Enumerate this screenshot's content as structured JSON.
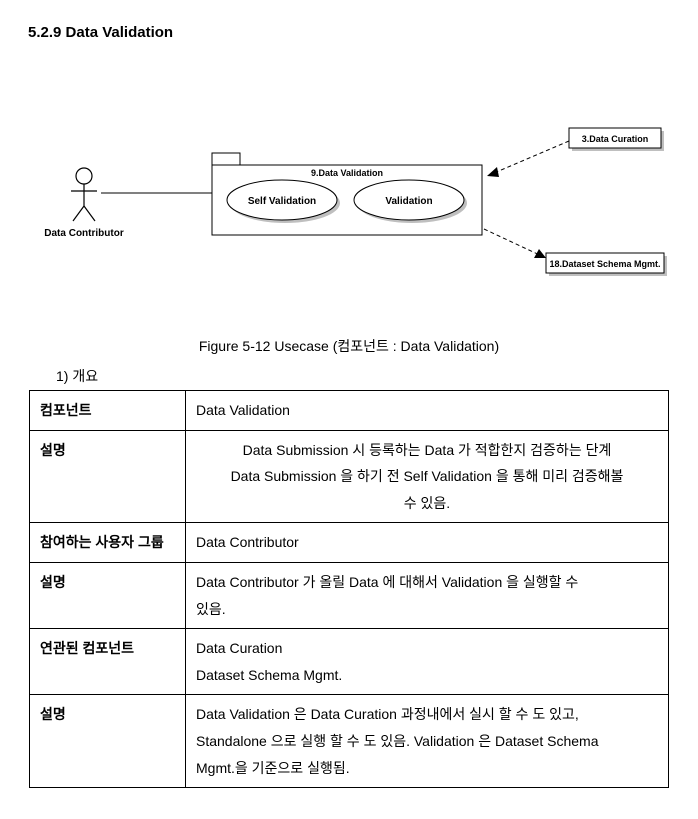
{
  "heading": "5.2.9  Data Validation",
  "diagram": {
    "actor_label": "Data Contributor",
    "package_label": "9.Data Validation",
    "usecase1": "Self Validation",
    "usecase2": "Validation",
    "ext_box_top": "3.Data Curation",
    "ext_box_bottom": "18.Dataset Schema Mgmt.",
    "colors": {
      "line": "#000000",
      "box_border": "#000000",
      "box_fill": "#ffffff",
      "shadow": "#bfbfbf"
    }
  },
  "figure_caption": "Figure 5-12 Usecase (컴포넌트 : Data Validation)",
  "list_item": "1)  개요",
  "table": {
    "rows": [
      {
        "k": "컴포넌트",
        "v": "Data Validation"
      },
      {
        "k": "설명",
        "v_lines": [
          "Data Submission 시 등록하는 Data 가 적합한지 검증하는 단계",
          "Data Submission 을 하기 전 Self Validation 을 통해 미리 검증해볼",
          "수 있음."
        ],
        "center": true
      },
      {
        "k": "참여하는 사용자 그룹",
        "v": "Data  Contributor"
      },
      {
        "k": "설명",
        "v_lines": [
          "Data Contributor 가 올릴 Data 에 대해서 Validation 을 실행할 수",
          "있음."
        ]
      },
      {
        "k": "연관된 컴포넌트",
        "v_lines": [
          "Data Curation",
          "Dataset Schema Mgmt."
        ]
      },
      {
        "k": "설명",
        "v_lines": [
          "Data Validation 은 Data Curation 과정내에서 실시 할 수 도 있고,",
          "Standalone 으로 실행 할 수 도 있음. Validation 은 Dataset Schema",
          "Mgmt.을 기준으로  실행됨."
        ]
      }
    ]
  }
}
